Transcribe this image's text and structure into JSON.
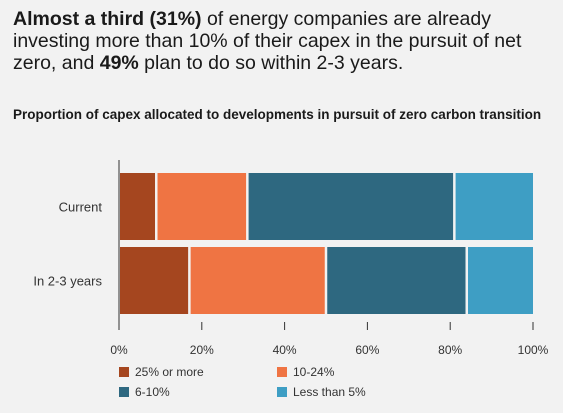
{
  "headline": {
    "p1_bold": "Almost a third (31%)",
    "p2": " of energy companies are already investing more than 10% of their capex in the pursuit of net zero, and ",
    "p3_bold": "49%",
    "p4": " plan to do so within 2-3 years."
  },
  "chart_data": {
    "type": "bar",
    "orientation": "horizontal",
    "stacked": true,
    "title": "Proportion of capex allocated to developments in pursuit of zero carbon transition",
    "categories": [
      "Current",
      "In 2-3 years"
    ],
    "series": [
      {
        "name": "25% or more",
        "color": "#a5461f",
        "values": [
          9,
          17
        ]
      },
      {
        "name": "10-24%",
        "color": "#ef7443",
        "values": [
          22,
          33
        ]
      },
      {
        "name": "6-10%",
        "color": "#2e6880",
        "values": [
          50,
          34
        ]
      },
      {
        "name": "Less than 5%",
        "color": "#3e9ec4",
        "values": [
          19,
          16
        ]
      }
    ],
    "xlim": [
      0,
      100
    ],
    "x_ticks": [
      "0%",
      "20%",
      "40%",
      "60%",
      "80%",
      "100%"
    ],
    "legend_placement": "bottom",
    "grid": false
  }
}
